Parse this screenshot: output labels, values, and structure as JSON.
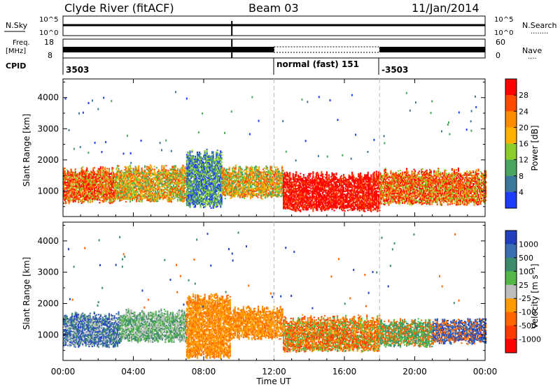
{
  "header": {
    "site": "Clyde River (fitACF)",
    "beam": "Beam 03",
    "date": "11/Jan/2014"
  },
  "strip_labels": {
    "nsky": "N.Sky",
    "nsearch": "N.Search",
    "nsearch_dots": "........",
    "freq_line1": "Freq.",
    "freq_line2": "[MHz]",
    "nave": "Nave",
    "nave_dots": "....",
    "cpid": "CPID",
    "noise_tick_hi": "10^5",
    "noise_tick_lo": "10^0",
    "freq_tick_hi": "18",
    "freq_tick_lo": "8",
    "nave_tick_hi": "60",
    "nave_tick_lo": "0"
  },
  "cpid_segments": [
    "3503",
    "normal (fast) 151",
    "-3503"
  ],
  "x_axis": {
    "label": "Time UT",
    "ticks": [
      "00:00",
      "04:00",
      "08:00",
      "12:00",
      "16:00",
      "20:00",
      "00:00"
    ]
  },
  "power_colorbar": {
    "label": "Power [dB]",
    "ticks": [
      "28",
      "24",
      "20",
      "16",
      "12",
      "8",
      "4"
    ],
    "colors": [
      "#ff0000",
      "#ff4a00",
      "#ff8c00",
      "#ffb000",
      "#8ccd2c",
      "#4aa55e",
      "#3c789c",
      "#1e3cff"
    ]
  },
  "velocity_colorbar": {
    "label": "Velocity [m s⁻¹]",
    "ticks": [
      "1000",
      "500",
      "100",
      "25",
      "-25",
      "-100",
      "-500",
      "-1000"
    ],
    "colors": [
      "#2040c0",
      "#3a6eb0",
      "#3c8c6c",
      "#54b848",
      "#bebebe",
      "#ff9a00",
      "#ff6600",
      "#ff3a00",
      "#ff0000"
    ]
  },
  "chart_data": [
    {
      "type": "heatmap",
      "name": "power",
      "ylabel": "Slant Range [km]",
      "xlabel": "",
      "x_range_hours": [
        0,
        24
      ],
      "ylim": [
        180,
        4600
      ],
      "yticks": [
        1000,
        2000,
        3000,
        4000
      ],
      "colorbar_label": "Power [dB]",
      "colorbar_ticks": [
        28,
        24,
        20,
        16,
        12,
        8,
        4
      ],
      "bands": [
        {
          "t0": 0.0,
          "t1": 3.0,
          "r0": 650,
          "r1": 1650,
          "dominant": "orange-red"
        },
        {
          "t0": 3.0,
          "t1": 7.0,
          "r0": 700,
          "r1": 1700,
          "dominant": "green-orange"
        },
        {
          "t0": 7.0,
          "t1": 9.0,
          "r0": 500,
          "r1": 2200,
          "dominant": "green-blue"
        },
        {
          "t0": 9.0,
          "t1": 12.5,
          "r0": 800,
          "r1": 1700,
          "dominant": "green-orange"
        },
        {
          "t0": 12.5,
          "t1": 18.0,
          "r0": 380,
          "r1": 1500,
          "dominant": "red"
        },
        {
          "t0": 18.0,
          "t1": 24.0,
          "r0": 600,
          "r1": 1600,
          "dominant": "orange-red"
        }
      ]
    },
    {
      "type": "heatmap",
      "name": "velocity",
      "ylabel": "Slant Range [km]",
      "xlabel": "Time UT",
      "x_range_hours": [
        0,
        24
      ],
      "ylim": [
        180,
        4600
      ],
      "yticks": [
        1000,
        2000,
        3000,
        4000
      ],
      "colorbar_label": "Velocity [m s⁻¹]",
      "colorbar_ticks": [
        1000,
        500,
        100,
        25,
        -25,
        -100,
        -500,
        -1000
      ],
      "bands": [
        {
          "t0": 0.0,
          "t1": 3.2,
          "r0": 650,
          "r1": 1600,
          "dominant": "blue-green"
        },
        {
          "t0": 3.2,
          "t1": 7.0,
          "r0": 800,
          "r1": 1700,
          "dominant": "green-grey"
        },
        {
          "t0": 7.0,
          "t1": 9.5,
          "r0": 300,
          "r1": 2200,
          "dominant": "orange"
        },
        {
          "t0": 9.5,
          "t1": 12.5,
          "r0": 900,
          "r1": 1800,
          "dominant": "orange"
        },
        {
          "t0": 12.5,
          "t1": 18.0,
          "r0": 500,
          "r1": 1500,
          "dominant": "orange-red"
        },
        {
          "t0": 18.0,
          "t1": 21.0,
          "r0": 650,
          "r1": 1400,
          "dominant": "green"
        },
        {
          "t0": 21.0,
          "t1": 24.0,
          "r0": 750,
          "r1": 1400,
          "dominant": "blue"
        }
      ]
    }
  ]
}
